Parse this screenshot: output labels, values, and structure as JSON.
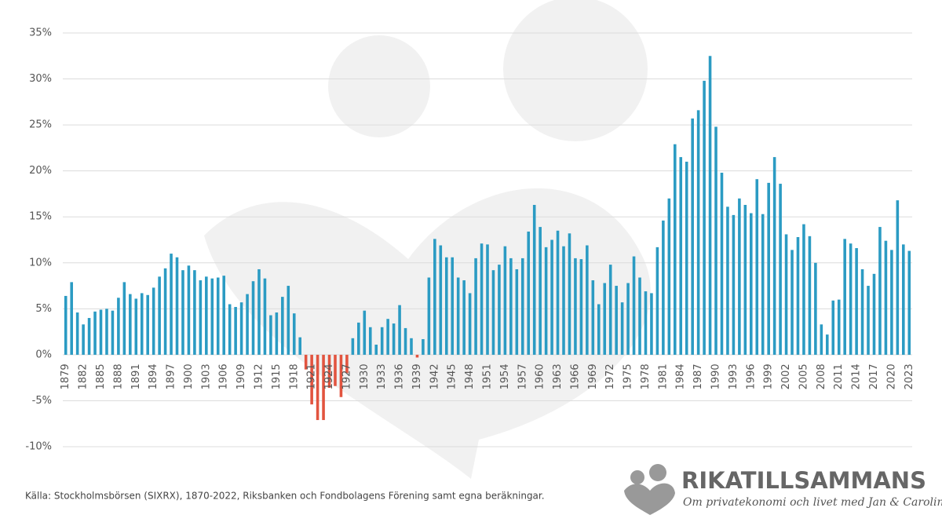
{
  "chart_data": {
    "type": "bar",
    "x": [
      1879,
      1880,
      1881,
      1882,
      1883,
      1884,
      1885,
      1886,
      1887,
      1888,
      1889,
      1890,
      1891,
      1892,
      1893,
      1894,
      1895,
      1896,
      1897,
      1898,
      1899,
      1900,
      1901,
      1902,
      1903,
      1904,
      1905,
      1906,
      1907,
      1908,
      1909,
      1910,
      1911,
      1912,
      1913,
      1914,
      1915,
      1916,
      1917,
      1918,
      1919,
      1920,
      1921,
      1922,
      1923,
      1924,
      1925,
      1926,
      1927,
      1928,
      1929,
      1930,
      1931,
      1932,
      1933,
      1934,
      1935,
      1936,
      1937,
      1938,
      1939,
      1940,
      1941,
      1942,
      1943,
      1944,
      1945,
      1946,
      1947,
      1948,
      1949,
      1950,
      1951,
      1952,
      1953,
      1954,
      1955,
      1956,
      1957,
      1958,
      1959,
      1960,
      1961,
      1962,
      1963,
      1964,
      1965,
      1966,
      1967,
      1968,
      1969,
      1970,
      1971,
      1972,
      1973,
      1974,
      1975,
      1976,
      1977,
      1978,
      1979,
      1980,
      1981,
      1982,
      1983,
      1984,
      1985,
      1986,
      1987,
      1988,
      1989,
      1990,
      1991,
      1992,
      1993,
      1994,
      1995,
      1996,
      1997,
      1998,
      1999,
      2000,
      2001,
      2002,
      2003,
      2004,
      2005,
      2006,
      2007,
      2008,
      2009,
      2010,
      2011,
      2012,
      2013,
      2014,
      2015,
      2016,
      2017,
      2018,
      2019,
      2020,
      2021,
      2022,
      2023
    ],
    "values": [
      6.4,
      7.9,
      4.6,
      3.3,
      4.0,
      4.7,
      4.9,
      5.0,
      4.8,
      6.2,
      7.9,
      6.6,
      6.1,
      6.7,
      6.5,
      7.3,
      8.5,
      9.4,
      11.0,
      10.6,
      9.2,
      9.7,
      9.2,
      8.1,
      8.5,
      8.3,
      8.4,
      8.6,
      5.5,
      5.2,
      5.7,
      6.6,
      8.0,
      9.3,
      8.3,
      4.3,
      4.6,
      6.3,
      7.5,
      4.5,
      1.9,
      -1.6,
      -5.4,
      -7.1,
      -7.1,
      -3.6,
      -3.4,
      -4.6,
      -2.0,
      1.8,
      3.5,
      4.8,
      3.0,
      1.1,
      3.0,
      3.9,
      3.4,
      5.4,
      2.9,
      1.8,
      -0.3,
      1.7,
      8.4,
      12.6,
      11.9,
      10.6,
      10.6,
      8.4,
      8.1,
      6.7,
      10.5,
      12.1,
      12.0,
      9.2,
      9.8,
      11.8,
      10.5,
      9.3,
      10.5,
      13.4,
      16.3,
      13.9,
      11.7,
      12.5,
      13.5,
      11.8,
      13.2,
      10.5,
      10.4,
      11.9,
      8.1,
      5.5,
      7.8,
      9.8,
      7.5,
      5.7,
      7.8,
      10.7,
      8.4,
      6.9,
      6.7,
      11.7,
      14.6,
      17.0,
      22.9,
      21.5,
      21.0,
      25.7,
      26.6,
      29.8,
      32.5,
      24.8,
      19.8,
      16.1,
      15.2,
      17.0,
      16.3,
      15.4,
      19.1,
      15.3,
      18.7,
      21.5,
      18.6,
      13.1,
      11.4,
      12.8,
      14.2,
      12.9,
      10.0,
      3.3,
      2.2,
      5.9,
      6.0,
      12.6,
      12.1,
      11.6,
      9.3,
      7.5,
      8.8,
      13.9,
      12.4,
      11.4,
      16.8,
      12.0,
      11.3
    ],
    "color": "#2b9bc3",
    "negative_color": "#e2543f",
    "xlim": [
      1878.5,
      2023.5
    ],
    "xticks": [
      1879,
      1882,
      1885,
      1888,
      1891,
      1894,
      1897,
      1900,
      1903,
      1906,
      1909,
      1912,
      1915,
      1918,
      1921,
      1924,
      1927,
      1930,
      1933,
      1936,
      1939,
      1942,
      1945,
      1948,
      1951,
      1954,
      1957,
      1960,
      1963,
      1966,
      1969,
      1972,
      1975,
      1978,
      1981,
      1984,
      1987,
      1990,
      1993,
      1996,
      1999,
      2002,
      2005,
      2008,
      2011,
      2014,
      2017,
      2020,
      2023
    ],
    "ylim": [
      -10,
      35
    ],
    "yticks": [
      {
        "value": -10,
        "label": "-10%"
      },
      {
        "value": -5,
        "label": "-5%"
      },
      {
        "value": 0,
        "label": "0%"
      },
      {
        "value": 5,
        "label": "5%"
      },
      {
        "value": 10,
        "label": "10%"
      },
      {
        "value": 15,
        "label": "15%"
      },
      {
        "value": 20,
        "label": "20%"
      },
      {
        "value": 25,
        "label": "25%"
      },
      {
        "value": 30,
        "label": "30%"
      },
      {
        "value": 35,
        "label": "35%"
      }
    ],
    "grid": true,
    "source": "Källa: Stockholmsbörsen (SIXRX), 1870-2022, Riksbanken och Fondbolagens Förening samt egna beräkningar.",
    "brand": "RIKATILLSAMMANS",
    "tagline": "Om privatekonomi och livet med Jan & Caroline"
  }
}
